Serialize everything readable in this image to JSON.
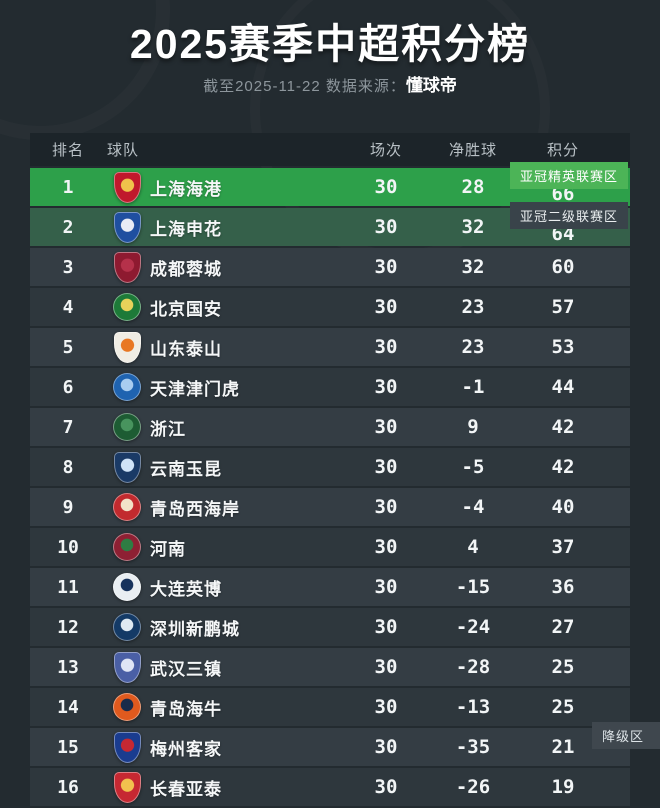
{
  "header": {
    "title": "2025赛季中超积分榜",
    "as_of": "截至2025-11-22 数据来源：",
    "source": "懂球帝"
  },
  "table": {
    "columns": {
      "rank": "排名",
      "team": "球队",
      "played": "场次",
      "gd": "净胜球",
      "points": "积分"
    },
    "zones": {
      "elite": "亚冠精英联赛区",
      "second": "亚冠二级联赛区",
      "relegation": "降级区"
    },
    "teams": [
      {
        "rank": 1,
        "name": "上海海港",
        "played": 30,
        "gd": 28,
        "points": 66,
        "zone": "elite",
        "crest": {
          "shape": "shield",
          "c1": "#c0182c",
          "c2": "#f0c24b"
        }
      },
      {
        "rank": 2,
        "name": "上海申花",
        "played": 30,
        "gd": 32,
        "points": 64,
        "zone": "second",
        "crest": {
          "shape": "shield",
          "c1": "#1f4fa0",
          "c2": "#e8ecf5"
        }
      },
      {
        "rank": 3,
        "name": "成都蓉城",
        "played": 30,
        "gd": 32,
        "points": 60,
        "zone": null,
        "crest": {
          "shape": "shield",
          "c1": "#8e1a30",
          "c2": "#b5314a"
        }
      },
      {
        "rank": 4,
        "name": "北京国安",
        "played": 30,
        "gd": 23,
        "points": 57,
        "zone": null,
        "crest": {
          "shape": "circle",
          "c1": "#1d7a38",
          "c2": "#e8d25a"
        }
      },
      {
        "rank": 5,
        "name": "山东泰山",
        "played": 30,
        "gd": 23,
        "points": 53,
        "zone": null,
        "crest": {
          "shape": "shield",
          "c1": "#f0ede4",
          "c2": "#e87722"
        }
      },
      {
        "rank": 6,
        "name": "天津津门虎",
        "played": 30,
        "gd": -1,
        "points": 44,
        "zone": null,
        "crest": {
          "shape": "circle",
          "c1": "#1f63b0",
          "c2": "#a9cdf0"
        }
      },
      {
        "rank": 7,
        "name": "浙江",
        "played": 30,
        "gd": 9,
        "points": 42,
        "zone": null,
        "crest": {
          "shape": "circle",
          "c1": "#1d5c33",
          "c2": "#48945e"
        }
      },
      {
        "rank": 8,
        "name": "云南玉昆",
        "played": 30,
        "gd": -5,
        "points": 42,
        "zone": null,
        "crest": {
          "shape": "shield",
          "c1": "#1a3a66",
          "c2": "#cfe3f7"
        }
      },
      {
        "rank": 9,
        "name": "青岛西海岸",
        "played": 30,
        "gd": -4,
        "points": 40,
        "zone": null,
        "crest": {
          "shape": "circle",
          "c1": "#c22a2e",
          "c2": "#f2e3c8"
        }
      },
      {
        "rank": 10,
        "name": "河南",
        "played": 30,
        "gd": 4,
        "points": 37,
        "zone": null,
        "crest": {
          "shape": "circle",
          "c1": "#8e2033",
          "c2": "#2e7d43"
        }
      },
      {
        "rank": 11,
        "name": "大连英博",
        "played": 30,
        "gd": -15,
        "points": 36,
        "zone": null,
        "crest": {
          "shape": "circle",
          "c1": "#e9eef2",
          "c2": "#16325c"
        }
      },
      {
        "rank": 12,
        "name": "深圳新鹏城",
        "played": 30,
        "gd": -24,
        "points": 27,
        "zone": null,
        "crest": {
          "shape": "circle",
          "c1": "#143a66",
          "c2": "#dfe9f2"
        }
      },
      {
        "rank": 13,
        "name": "武汉三镇",
        "played": 30,
        "gd": -28,
        "points": 25,
        "zone": null,
        "crest": {
          "shape": "shield",
          "c1": "#4a5fa5",
          "c2": "#dfe5f5"
        }
      },
      {
        "rank": 14,
        "name": "青岛海牛",
        "played": 30,
        "gd": -13,
        "points": 25,
        "zone": null,
        "crest": {
          "shape": "circle",
          "c1": "#e05a1e",
          "c2": "#1a2b4a"
        }
      },
      {
        "rank": 15,
        "name": "梅州客家",
        "played": 30,
        "gd": -35,
        "points": 21,
        "zone": "relegation",
        "crest": {
          "shape": "shield",
          "c1": "#1a3c8f",
          "c2": "#c62832"
        }
      },
      {
        "rank": 16,
        "name": "长春亚泰",
        "played": 30,
        "gd": -26,
        "points": 19,
        "zone": null,
        "crest": {
          "shape": "shield",
          "c1": "#c62832",
          "c2": "#f2c14e"
        }
      }
    ]
  },
  "colors": {
    "page_bg": "#232b30",
    "header_row_bg": "#1c2429",
    "row_bg_a": "#343d44",
    "row_bg_b": "#2e373d",
    "row_acl_elite_bg": "#2da04a",
    "row_acl_second_bg": "#35604a",
    "zone_elite_badge_bg": "#4cb457",
    "zone_second_badge_bg": "#39434a",
    "zone_relegation_badge_bg": "#3f474e",
    "text_primary": "#ffffff",
    "text_muted": "#8d969c"
  },
  "chart_data": {
    "type": "table",
    "title": "2025赛季中超积分榜",
    "subtitle": "截至2025-11-22 数据来源：懂球帝",
    "columns": [
      "排名",
      "球队",
      "场次",
      "净胜球",
      "积分"
    ],
    "rows": [
      [
        1,
        "上海海港",
        30,
        28,
        66
      ],
      [
        2,
        "上海申花",
        30,
        32,
        64
      ],
      [
        3,
        "成都蓉城",
        30,
        32,
        60
      ],
      [
        4,
        "北京国安",
        30,
        23,
        57
      ],
      [
        5,
        "山东泰山",
        30,
        23,
        53
      ],
      [
        6,
        "天津津门虎",
        30,
        -1,
        44
      ],
      [
        7,
        "浙江",
        30,
        9,
        42
      ],
      [
        8,
        "云南玉昆",
        30,
        -5,
        42
      ],
      [
        9,
        "青岛西海岸",
        30,
        -4,
        40
      ],
      [
        10,
        "河南",
        30,
        4,
        37
      ],
      [
        11,
        "大连英博",
        30,
        -15,
        36
      ],
      [
        12,
        "深圳新鹏城",
        30,
        -24,
        27
      ],
      [
        13,
        "武汉三镇",
        30,
        -28,
        25
      ],
      [
        14,
        "青岛海牛",
        30,
        -13,
        25
      ],
      [
        15,
        "梅州客家",
        30,
        -35,
        21
      ],
      [
        16,
        "长春亚泰",
        30,
        -26,
        19
      ]
    ],
    "annotations": [
      {
        "row_rank": 1,
        "label": "亚冠精英联赛区"
      },
      {
        "row_rank": 2,
        "label": "亚冠二级联赛区"
      },
      {
        "row_rank": 15,
        "label": "降级区"
      }
    ]
  }
}
